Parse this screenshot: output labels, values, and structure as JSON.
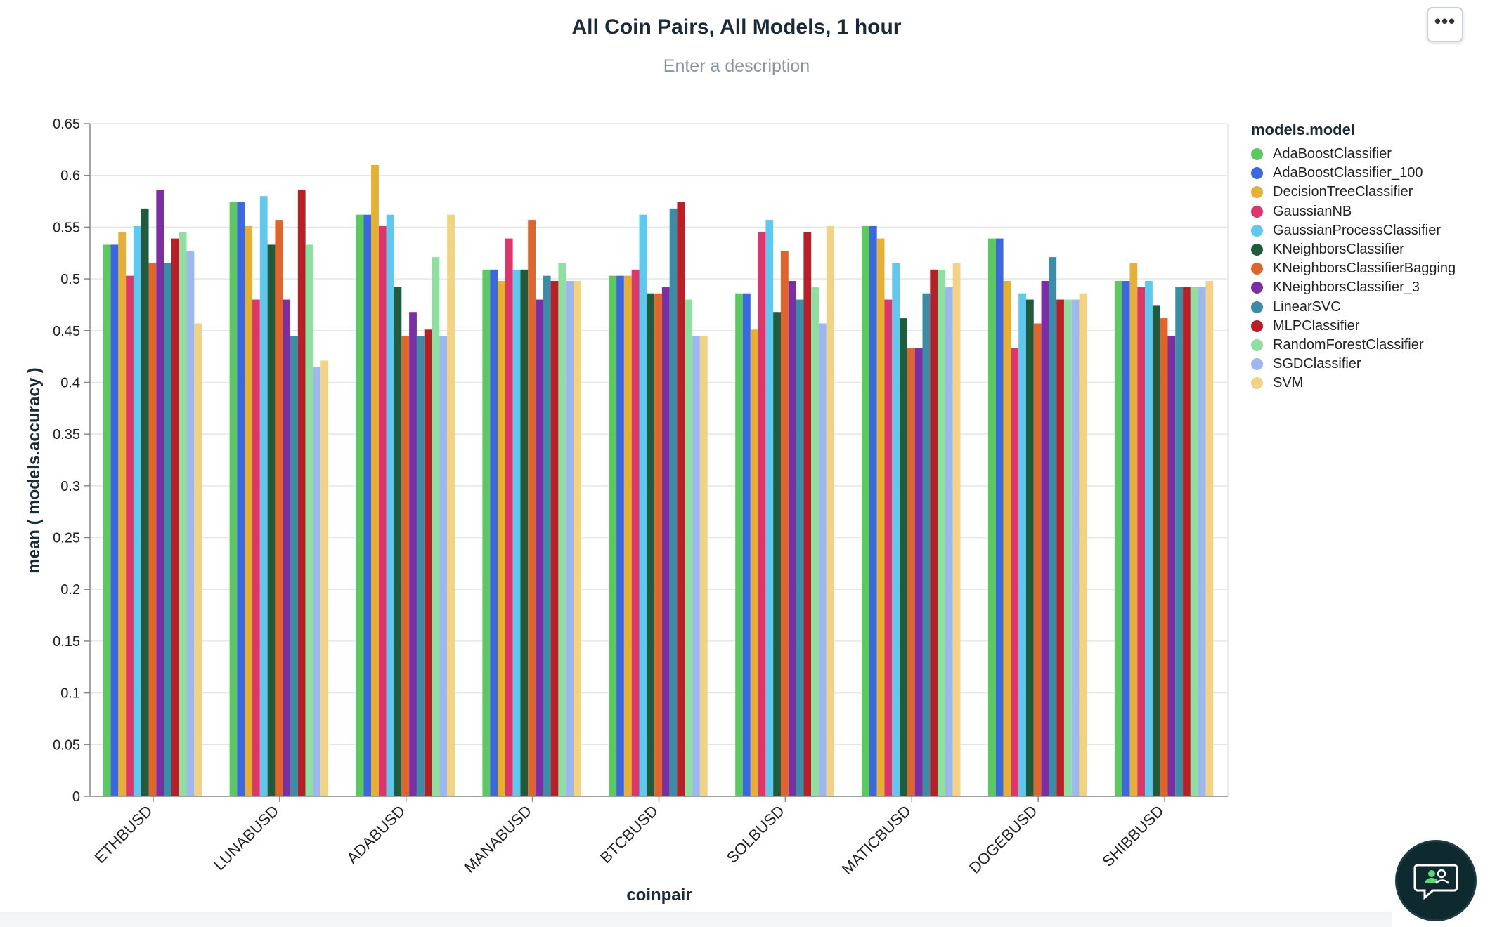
{
  "header": {
    "title": "All Coin Pairs, All Models, 1 hour",
    "description_placeholder": "Enter a description",
    "more_label": "•••"
  },
  "colors": {
    "AdaBoostClassifier": "#5bc95e",
    "AdaBoostClassifier_100": "#3b67e0",
    "DecisionTreeClassifier": "#e5b034",
    "GaussianNB": "#e0356a",
    "GaussianProcessClassifier": "#5ec8ee",
    "KNeighborsClassifier": "#1f5c3e",
    "KNeighborsClassifierBagging": "#e0652b",
    "KNeighborsClassifier_3": "#7b2fa3",
    "LinearSVC": "#3b8ca6",
    "MLPClassifier": "#b91f26",
    "RandomForestClassifier": "#8fe0a0",
    "SGDClassifier": "#9db8f0",
    "SVM": "#f1d383"
  },
  "chart_data": {
    "type": "bar",
    "xlabel": "coinpair",
    "ylabel": "mean ( models.accuracy )",
    "ylim": [
      0,
      0.65
    ],
    "yticks": [
      "0",
      "0.05",
      "0.1",
      "0.15",
      "0.2",
      "0.25",
      "0.3",
      "0.35",
      "0.4",
      "0.45",
      "0.5",
      "0.55",
      "0.6",
      "0.65"
    ],
    "grid": true,
    "legend_title": "models.model",
    "legend_placement": "right",
    "categories": [
      "ETHBUSD",
      "LUNABUSD",
      "ADABUSD",
      "MANABUSD",
      "BTCBUSD",
      "SOLBUSD",
      "MATICBUSD",
      "DOGEBUSD",
      "SHIBBUSD"
    ],
    "series": [
      {
        "name": "AdaBoostClassifier",
        "values": [
          0.533,
          0.574,
          0.562,
          0.509,
          0.503,
          0.486,
          0.551,
          0.539,
          0.498
        ]
      },
      {
        "name": "AdaBoostClassifier_100",
        "values": [
          0.533,
          0.574,
          0.562,
          0.509,
          0.503,
          0.486,
          0.551,
          0.539,
          0.498
        ]
      },
      {
        "name": "DecisionTreeClassifier",
        "values": [
          0.545,
          0.551,
          0.61,
          0.498,
          0.503,
          0.451,
          0.539,
          0.498,
          0.515
        ]
      },
      {
        "name": "GaussianNB",
        "values": [
          0.503,
          0.48,
          0.551,
          0.539,
          0.509,
          0.545,
          0.48,
          0.433,
          0.492
        ]
      },
      {
        "name": "GaussianProcessClassifier",
        "values": [
          0.551,
          0.58,
          0.562,
          0.509,
          0.562,
          0.557,
          0.515,
          0.486,
          0.498
        ]
      },
      {
        "name": "KNeighborsClassifier",
        "values": [
          0.568,
          0.533,
          0.492,
          0.509,
          0.486,
          0.468,
          0.462,
          0.48,
          0.474
        ]
      },
      {
        "name": "KNeighborsClassifierBagging",
        "values": [
          0.515,
          0.557,
          0.445,
          0.557,
          0.486,
          0.527,
          0.433,
          0.457,
          0.462
        ]
      },
      {
        "name": "KNeighborsClassifier_3",
        "values": [
          0.586,
          0.48,
          0.468,
          0.48,
          0.492,
          0.498,
          0.433,
          0.498,
          0.445
        ]
      },
      {
        "name": "LinearSVC",
        "values": [
          0.515,
          0.445,
          0.445,
          0.503,
          0.568,
          0.48,
          0.486,
          0.521,
          0.492
        ]
      },
      {
        "name": "MLPClassifier",
        "values": [
          0.539,
          0.586,
          0.451,
          0.498,
          0.574,
          0.545,
          0.509,
          0.48,
          0.492
        ]
      },
      {
        "name": "RandomForestClassifier",
        "values": [
          0.545,
          0.533,
          0.521,
          0.515,
          0.48,
          0.492,
          0.509,
          0.48,
          0.492
        ]
      },
      {
        "name": "SGDClassifier",
        "values": [
          0.527,
          0.415,
          0.445,
          0.498,
          0.445,
          0.457,
          0.492,
          0.48,
          0.492
        ]
      },
      {
        "name": "SVM",
        "values": [
          0.457,
          0.421,
          0.562,
          0.498,
          0.445,
          0.551,
          0.515,
          0.486,
          0.498
        ]
      }
    ]
  }
}
